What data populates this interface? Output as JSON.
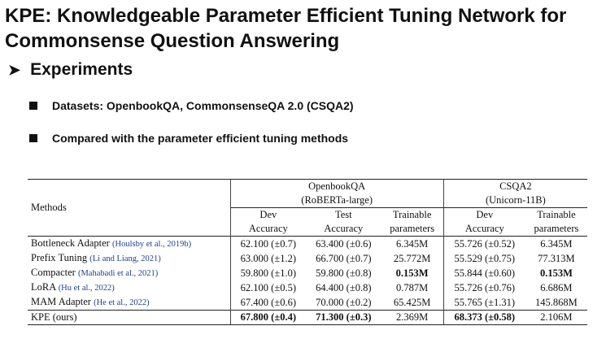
{
  "slide": {
    "title": "KPE: Knowledgeable Parameter Efficient Tuning Network for Commonsense Question Answering",
    "section": "Experiments",
    "bullets": [
      "Datasets: OpenbookQA,  CommonsenseQA 2.0 (CSQA2)",
      "Compared with the parameter efficient tuning methods"
    ]
  },
  "table": {
    "methods_header": "Methods",
    "groups": [
      {
        "name": "OpenbookQA",
        "model": "(RoBERTa-large)"
      },
      {
        "name": "CSQA2",
        "model": "(Unicorn-11B)"
      }
    ],
    "col_headers": {
      "obqa_dev": [
        "Dev",
        "Accuracy"
      ],
      "obqa_test": [
        "Test",
        "Accuracy"
      ],
      "obqa_params": [
        "Trainable",
        "parameters"
      ],
      "csqa_dev": [
        "Dev",
        "Accuracy"
      ],
      "csqa_params": [
        "Trainable",
        "parameters"
      ]
    },
    "rows": [
      {
        "method": "Bottleneck Adapter",
        "cite": "(Houlsby et al., 2019b)",
        "obqa_dev": "62.100 (±0.7)",
        "obqa_test": "63.400 (±0.6)",
        "obqa_params": "6.345M",
        "csqa_dev": "55.726 (±0.52)",
        "csqa_params": "6.345M"
      },
      {
        "method": "Prefix Tuning",
        "cite": "(Li and Liang, 2021)",
        "obqa_dev": "63.000 (±1.2)",
        "obqa_test": "66.700 (±0.7)",
        "obqa_params": "25.772M",
        "csqa_dev": "55.529 (±0.75)",
        "csqa_params": "77.313M"
      },
      {
        "method": "Compacter",
        "cite": "(Mahabadi et al., 2021)",
        "obqa_dev": "59.800 (±1.0)",
        "obqa_test": "59.800 (±0.8)",
        "obqa_params": "0.153M",
        "csqa_dev": "55.844 (±0.60)",
        "csqa_params": "0.153M"
      },
      {
        "method": "LoRA",
        "cite": "(Hu et al., 2022)",
        "obqa_dev": "62.100 (±0.5)",
        "obqa_test": "64.400 (±0.8)",
        "obqa_params": "0.787M",
        "csqa_dev": "55.726 (±0.76)",
        "csqa_params": "6.686M"
      },
      {
        "method": "MAM Adapter",
        "cite": "(He et al., 2022)",
        "obqa_dev": "67.400 (±0.6)",
        "obqa_test": "70.000 (±0.2)",
        "obqa_params": "65.425M",
        "csqa_dev": "55.765 (±1.31)",
        "csqa_params": "145.868M"
      },
      {
        "method": "KPE (ours)",
        "cite": "",
        "obqa_dev": "67.800 (±0.4)",
        "obqa_test": "71.300 (±0.3)",
        "obqa_params": "2.369M",
        "csqa_dev": "68.373 (±0.58)",
        "csqa_params": "2.106M"
      }
    ]
  }
}
